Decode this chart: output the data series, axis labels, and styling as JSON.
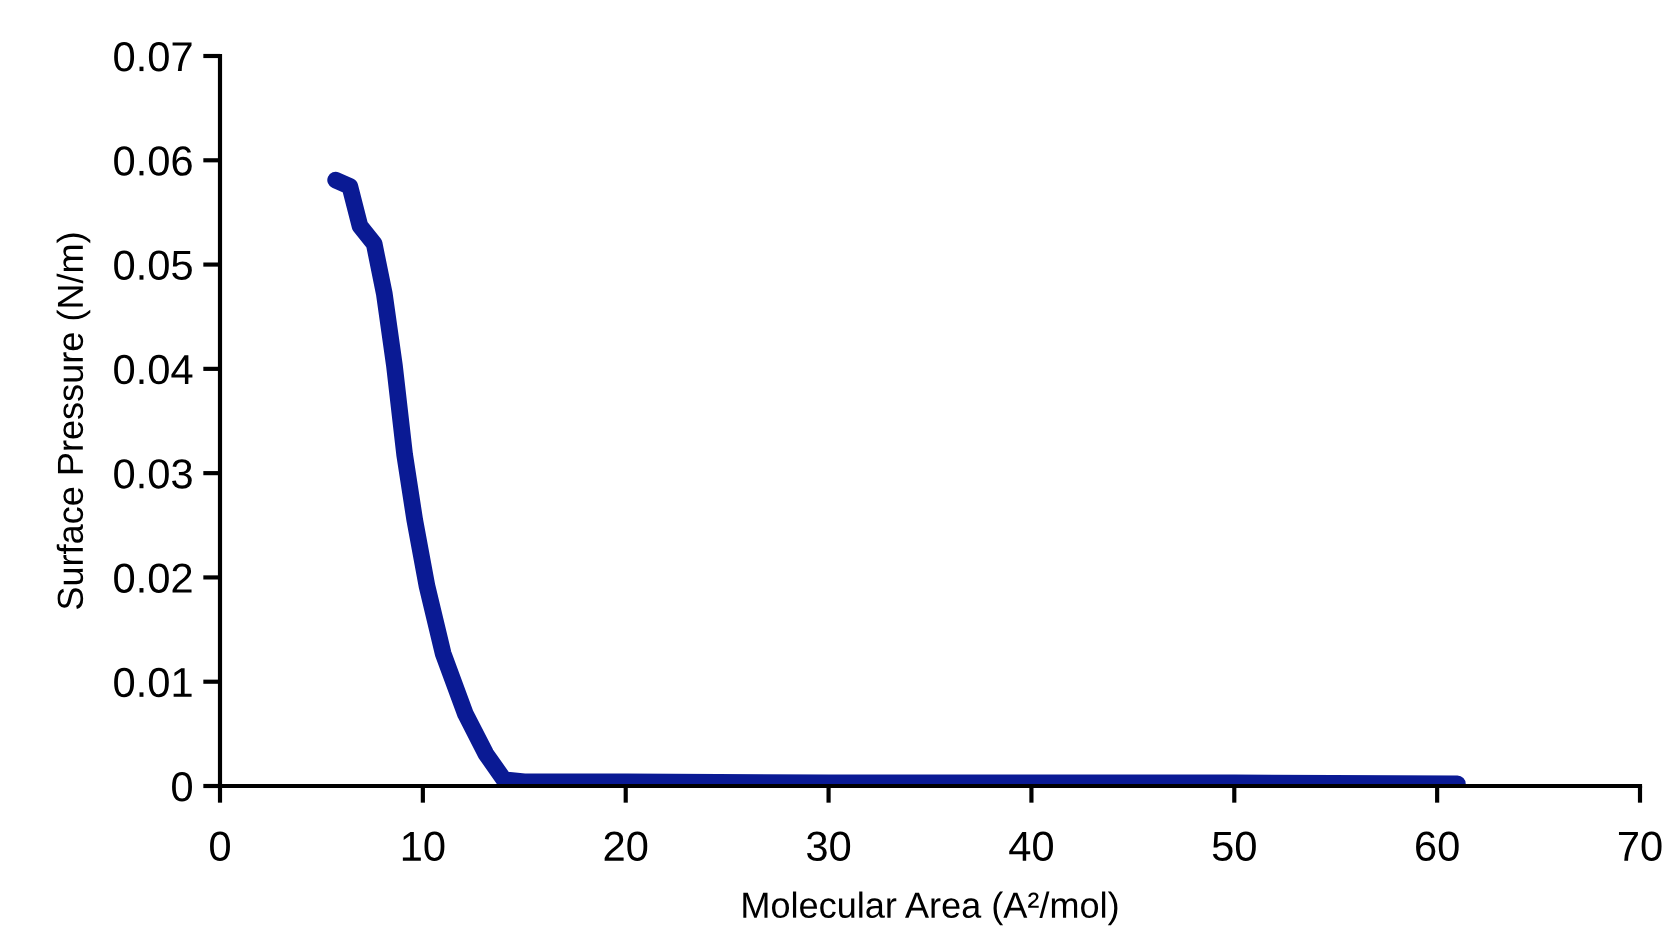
{
  "chart_data": {
    "type": "line",
    "xlabel": "Molecular Area (A²/mol)",
    "ylabel": "Surface Pressure (N/m)",
    "series": [
      {
        "color": "#0a1a94",
        "x": [
          5.7,
          6.4,
          6.9,
          7.6,
          8.1,
          8.6,
          9.1,
          9.6,
          10.2,
          11.0,
          12.1,
          13.1,
          14.0,
          15,
          20,
          30,
          40,
          50,
          61
        ],
        "values": [
          0.0581,
          0.0575,
          0.0537,
          0.052,
          0.0472,
          0.0403,
          0.0318,
          0.0255,
          0.0192,
          0.0127,
          0.0069,
          0.0031,
          0.0006,
          0.0004,
          0.0004,
          0.0003,
          0.0003,
          0.0003,
          0.0002
        ]
      }
    ],
    "xlim": [
      0,
      70
    ],
    "xticks": [
      0,
      10,
      20,
      30,
      40,
      50,
      60,
      70
    ],
    "ylim": [
      0,
      0.07
    ],
    "yticks": [
      {
        "value": 0,
        "label": "0"
      },
      0.01,
      0.02,
      0.03,
      0.04,
      0.05,
      0.06,
      0.07
    ],
    "grid": false,
    "line_style": "solid",
    "marker": "none"
  }
}
